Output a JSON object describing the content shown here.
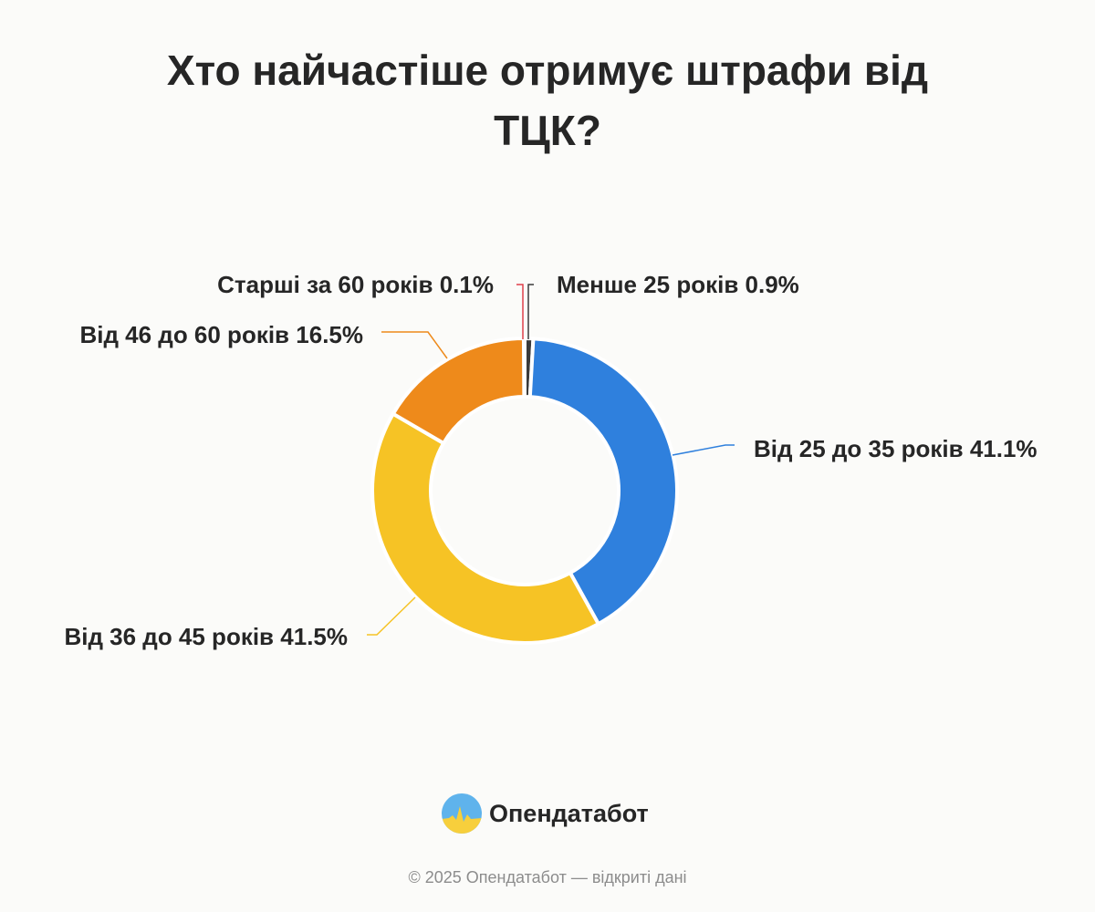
{
  "title": "Хто найчастіше отримує штрафи від ТЦК?",
  "chart_data": {
    "type": "pie",
    "variant": "donut",
    "categories": [
      "Менше 25 років",
      "Від 25 до 35 років",
      "Від 36 до 45 років",
      "Від 46 до 60 років",
      "Старші за 60 років"
    ],
    "values": [
      0.9,
      41.1,
      41.5,
      16.5,
      0.1
    ],
    "unit": "%",
    "colors": [
      "#3a3a3a",
      "#2f80dd",
      "#f6c325",
      "#ee8a1b",
      "#e0404a"
    ],
    "labels": [
      "Менше 25 років 0.9%",
      "Від 25 до 35 років 41.1%",
      "Від 36 до 45 років 41.5%",
      "Від 46 до 60 років 16.5%",
      "Старші за 60 років 0.1%"
    ],
    "legend": "none"
  },
  "brand": {
    "name": "Опендатабот",
    "logo_icon": "opendatabot-logo-icon"
  },
  "footer": "© 2025 Опендатабот — відкриті дані"
}
